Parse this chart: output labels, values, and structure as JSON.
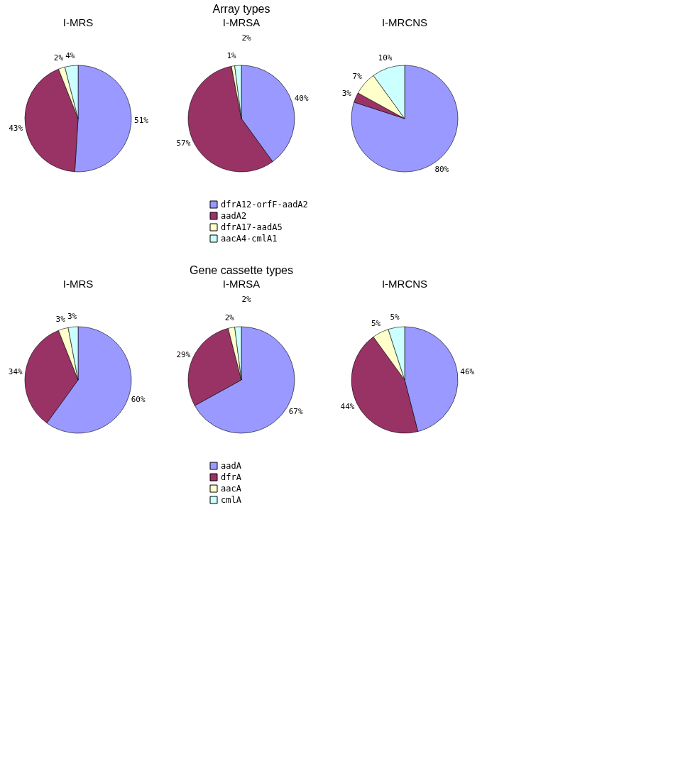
{
  "chart_data": [
    {
      "type": "pie",
      "annotations": [
        "Array types"
      ],
      "title": "I-MRS",
      "values": [
        51,
        43,
        2,
        4
      ],
      "colors": [
        "#9999ff",
        "#993366",
        "#ffffcc",
        "#ccffff"
      ],
      "value_labels": [
        "51%",
        "43%",
        "2%",
        "4%"
      ]
    },
    {
      "type": "pie",
      "title": "I-MRSA",
      "categories": [
        "dfrA12-orfF-aadA2",
        "aadA2",
        "dfrA17-aadA5",
        "aacA4-cmlA1"
      ],
      "values": [
        40,
        57,
        1,
        2
      ],
      "colors": [
        "#9999ff",
        "#993366",
        "#ffffcc",
        "#ccffff"
      ],
      "value_labels": [
        "40%",
        "57%",
        "1%",
        "2%"
      ],
      "legend": "bottom"
    },
    {
      "type": "pie",
      "title": "I-MRCNS",
      "values": [
        80,
        3,
        7,
        10
      ],
      "colors": [
        "#9999ff",
        "#993366",
        "#ffffcc",
        "#ccffff"
      ],
      "value_labels": [
        "80%",
        "3%",
        "7%",
        "10%"
      ]
    },
    {
      "type": "pie",
      "annotations": [
        "Gene cassette types"
      ],
      "title": "I-MRS",
      "values": [
        60,
        34,
        3,
        3
      ],
      "colors": [
        "#9999ff",
        "#993366",
        "#ffffcc",
        "#ccffff"
      ],
      "value_labels": [
        "60%",
        "34%",
        "3%",
        "3%"
      ]
    },
    {
      "type": "pie",
      "title": "I-MRSA",
      "categories": [
        "aadA",
        "dfrA",
        "aacA",
        "cmlA"
      ],
      "values": [
        67,
        29,
        2,
        2
      ],
      "colors": [
        "#9999ff",
        "#993366",
        "#ffffcc",
        "#ccffff"
      ],
      "value_labels": [
        "67%",
        "29%",
        "2%",
        "2%"
      ],
      "legend": "bottom"
    },
    {
      "type": "pie",
      "title": "I-MRCNS",
      "values": [
        46,
        44,
        5,
        5
      ],
      "colors": [
        "#9999ff",
        "#993366",
        "#ffffcc",
        "#ccffff"
      ],
      "value_labels": [
        "46%",
        "44%",
        "5%",
        "5%"
      ]
    }
  ]
}
